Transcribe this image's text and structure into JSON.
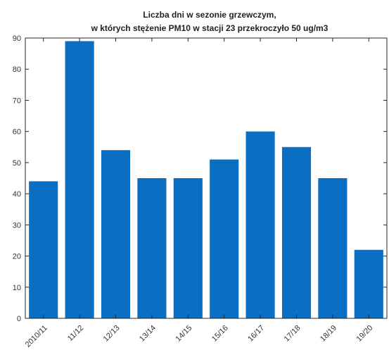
{
  "chart_data": {
    "type": "bar",
    "title_lines": [
      "Liczba dni w sezonie grzewczym,",
      "w których stężenie PM10 w stacji 23 przekroczyło 50 ug/m3"
    ],
    "categories": [
      "2010/11",
      "11/12",
      "12/13",
      "13/14",
      "14/15",
      "15/16",
      "16/17",
      "17/18",
      "18/19",
      "19/20"
    ],
    "values": [
      44,
      89,
      54,
      45,
      45,
      51,
      60,
      55,
      45,
      22
    ],
    "yticks": [
      0,
      10,
      20,
      30,
      40,
      50,
      60,
      70,
      80,
      90
    ],
    "ylim": [
      0,
      90
    ],
    "xlabel": "",
    "ylabel": "",
    "grid": false,
    "colors": {
      "bar": "#0a6fc2",
      "axis": "#262626",
      "text": "#333333"
    }
  }
}
